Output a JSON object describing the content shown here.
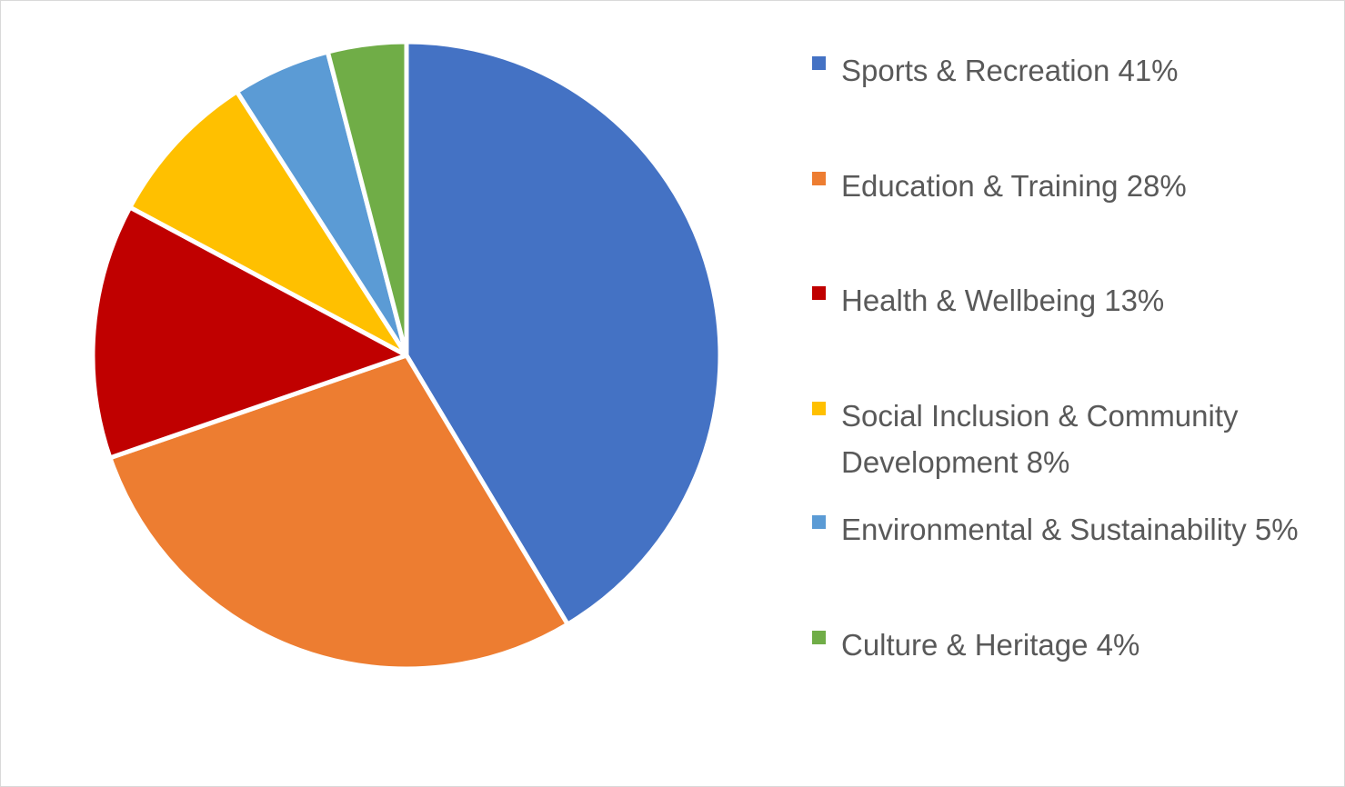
{
  "chart_data": {
    "type": "pie",
    "title": "",
    "categories": [
      "Sports & Recreation",
      "Education & Training",
      "Health & Wellbeing",
      "Social Inclusion & Community Development",
      "Environmental & Sustainability",
      "Culture & Heritage"
    ],
    "values": [
      41,
      28,
      13,
      8,
      5,
      4
    ],
    "unit": "%",
    "colors": [
      "#4472C4",
      "#ED7D31",
      "#C00000",
      "#FFC000",
      "#5B9BD5",
      "#70AD47"
    ],
    "legend_labels": [
      "Sports & Recreation 41%",
      "Education & Training 28%",
      "Health & Wellbeing 13%",
      "Social Inclusion & Community Development 8%",
      "Environmental & Sustainability 5%",
      "Culture & Heritage 4%"
    ],
    "legend_position": "right",
    "start_angle": "12 o'clock",
    "direction": "clockwise",
    "grid": false
  }
}
